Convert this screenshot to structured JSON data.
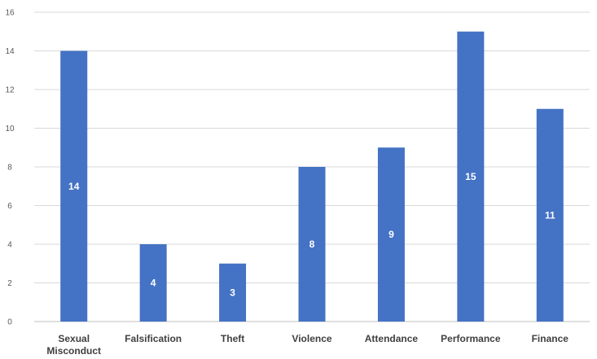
{
  "chart_data": {
    "type": "bar",
    "categories": [
      "Sexual\nMisconduct",
      "Falsification",
      "Theft",
      "Violence",
      "Attendance",
      "Performance",
      "Finance"
    ],
    "values": [
      14,
      4,
      3,
      8,
      9,
      15,
      11
    ],
    "data_labels": [
      "14",
      "4",
      "3",
      "8",
      "9",
      "15",
      "11"
    ],
    "ylim": [
      0,
      16
    ],
    "yticks": [
      "0",
      "2",
      "4",
      "6",
      "8",
      "10",
      "12",
      "14",
      "16"
    ],
    "grid": true,
    "bar_color": "#4472c4",
    "title": "",
    "xlabel": "",
    "ylabel": ""
  }
}
